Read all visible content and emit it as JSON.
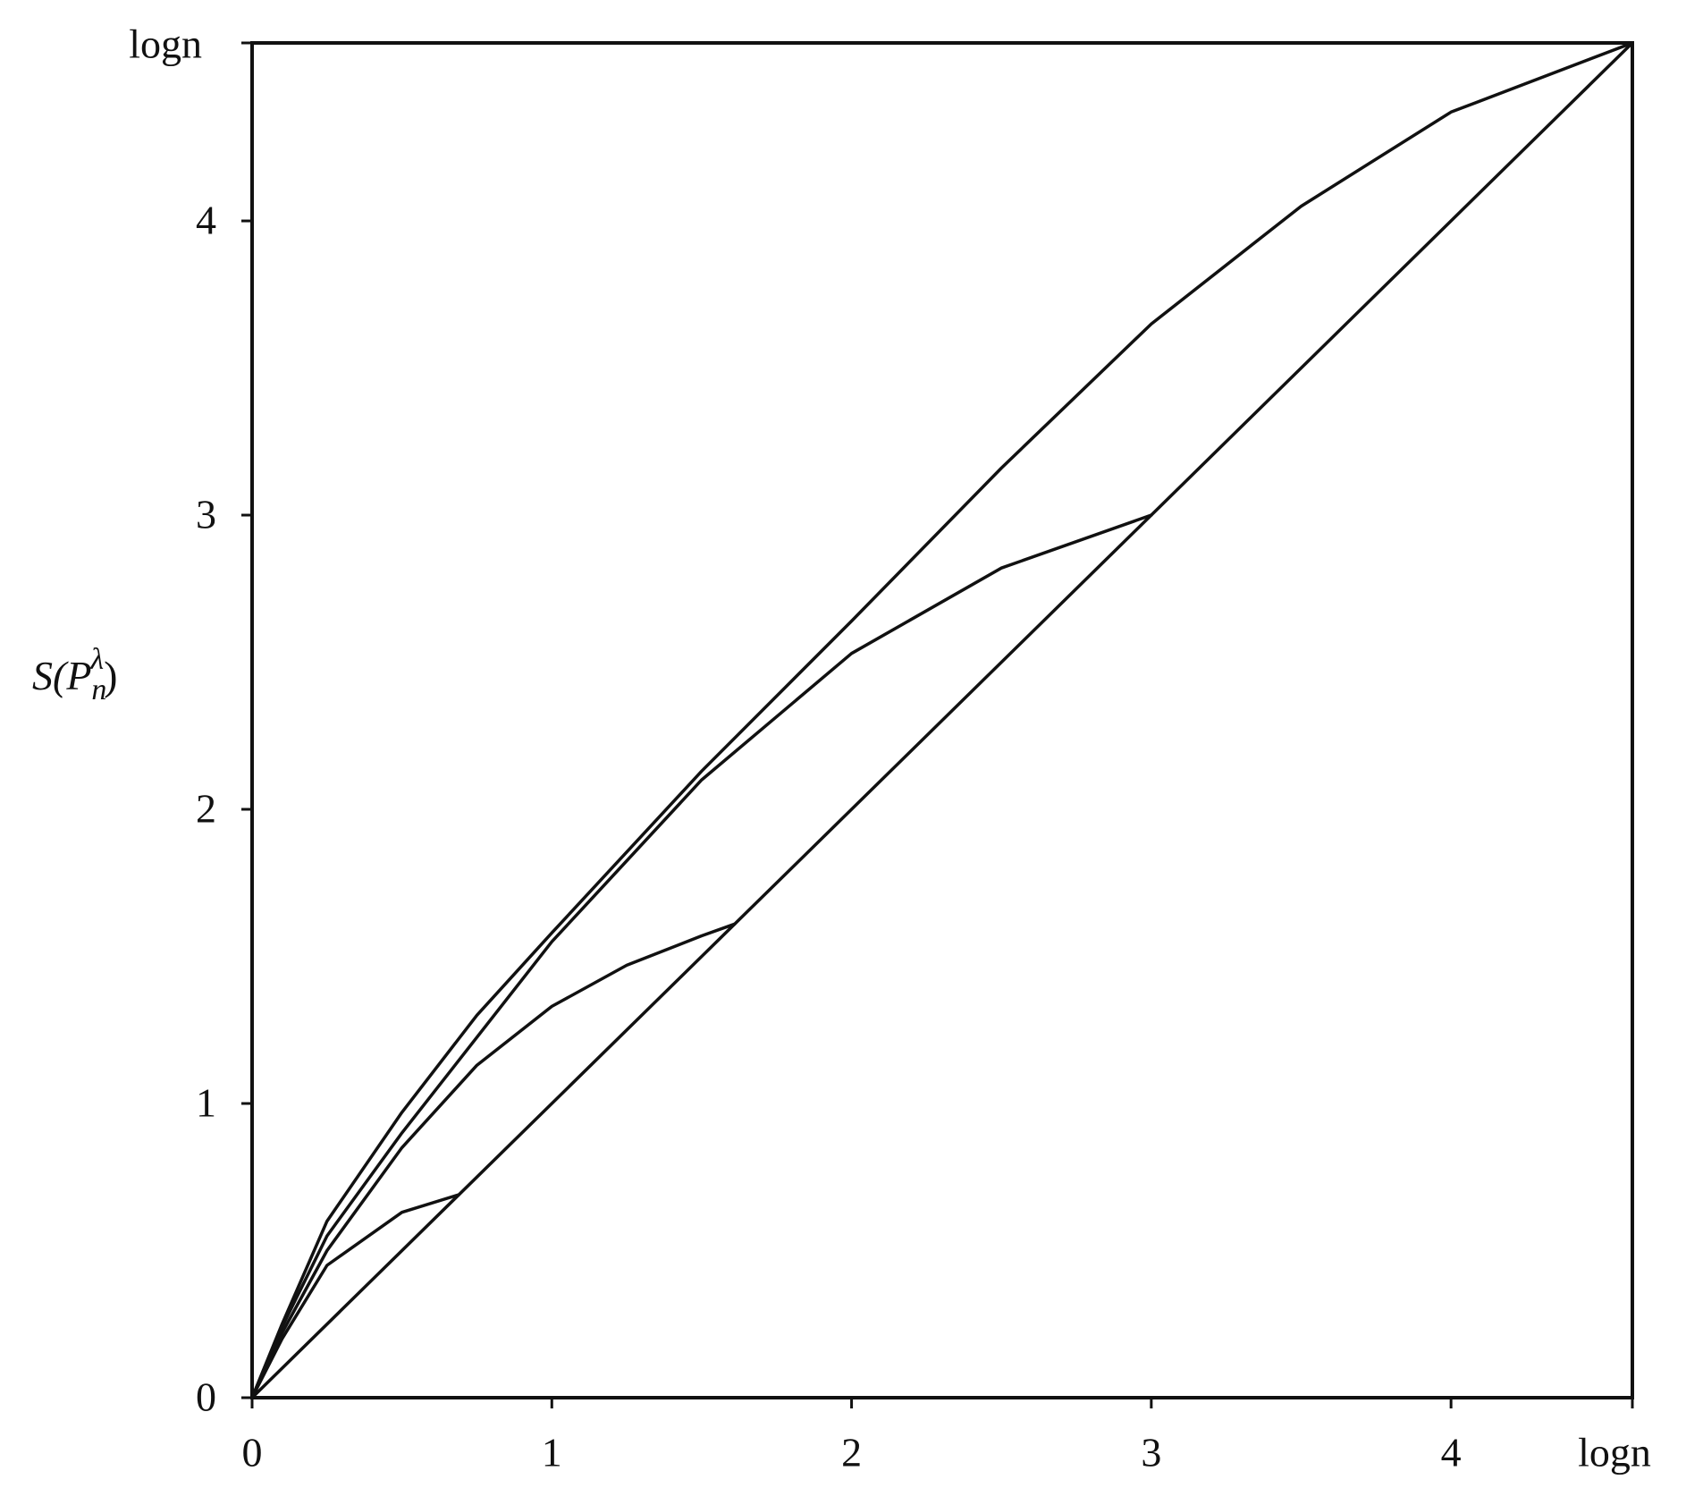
{
  "chart_data": {
    "type": "line",
    "ylabel": [
      "S(P",
      "n",
      "λ",
      ")"
    ],
    "xlim": [
      0,
      4.605
    ],
    "ylim": [
      0,
      4.605
    ],
    "xticks": [
      0,
      1,
      2,
      3,
      4,
      {
        "value": 4.605,
        "label": "logn"
      }
    ],
    "yticks": [
      0,
      1,
      2,
      3,
      4,
      {
        "value": 4.605,
        "label": "logn"
      }
    ],
    "color": "#111111",
    "series": [
      {
        "x": [
          0,
          4.605
        ],
        "values": [
          0,
          4.605
        ]
      },
      {
        "x": [
          0,
          0.1,
          0.25,
          0.5,
          0.75,
          1,
          1.5,
          2,
          2.5,
          3,
          3.5,
          4,
          4.605
        ],
        "values": [
          0,
          0.25,
          0.6,
          0.97,
          1.3,
          1.58,
          2.13,
          2.64,
          3.16,
          3.65,
          4.05,
          4.37,
          4.605
        ]
      },
      {
        "x": [
          0,
          0.1,
          0.25,
          0.5,
          0.69
        ],
        "values": [
          0,
          0.2,
          0.45,
          0.63,
          0.69
        ]
      },
      {
        "x": [
          0,
          0.1,
          0.25,
          0.5,
          0.75,
          1,
          1.25,
          1.5,
          1.61
        ],
        "values": [
          0,
          0.22,
          0.5,
          0.85,
          1.13,
          1.33,
          1.47,
          1.57,
          1.61
        ]
      },
      {
        "x": [
          0,
          0.1,
          0.25,
          0.5,
          1,
          1.5,
          2,
          2.5,
          3
        ],
        "values": [
          0,
          0.24,
          0.55,
          0.9,
          1.55,
          2.1,
          2.53,
          2.82,
          3
        ]
      }
    ]
  }
}
